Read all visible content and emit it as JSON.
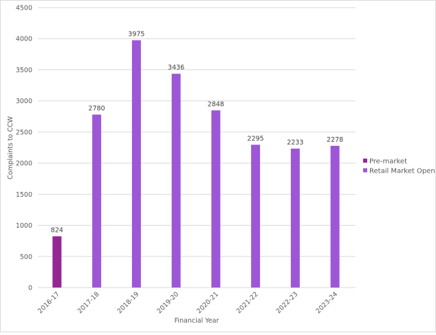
{
  "chart_data": {
    "type": "bar",
    "title": "",
    "xlabel": "Financial Year",
    "ylabel": "Complaints to CCW",
    "ylim": [
      0,
      4500
    ],
    "yticks": [
      0,
      500,
      1000,
      1500,
      2000,
      2500,
      3000,
      3500,
      4000,
      4500
    ],
    "grid": true,
    "legend_position": "right",
    "categories": [
      "2016-17",
      "2017-18",
      "2018-19",
      "2019-20",
      "2020-21",
      "2021-22",
      "2022-23",
      "2023-24"
    ],
    "series": [
      {
        "name": "Pre-market",
        "color": "#952694",
        "values": [
          824,
          null,
          null,
          null,
          null,
          null,
          null,
          null
        ]
      },
      {
        "name": "Retail Market Open",
        "color": "#9d57d6",
        "values": [
          null,
          2780,
          3975,
          3436,
          2848,
          2295,
          2233,
          2278
        ]
      }
    ]
  }
}
